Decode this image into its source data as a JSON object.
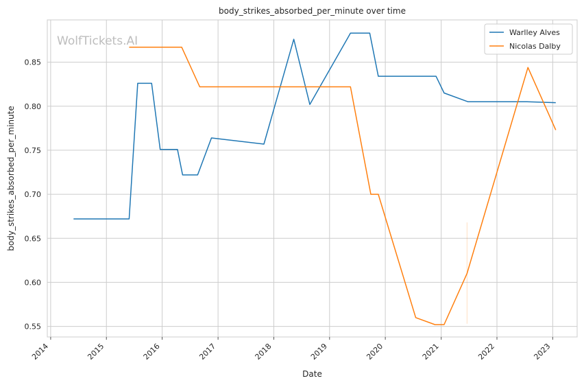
{
  "chart_data": {
    "type": "line",
    "title": "body_strikes_absorbed_per_minute over time",
    "xlabel": "Date",
    "ylabel": "body_strikes_absorbed_per_minute",
    "xlim": [
      "2013-12-10",
      "2023-06-10"
    ],
    "ylim": [
      0.538,
      0.898
    ],
    "x_ticks": [
      "2014-01-01",
      "2015-01-01",
      "2016-01-01",
      "2017-01-01",
      "2018-01-01",
      "2019-01-01",
      "2020-01-01",
      "2021-01-01",
      "2022-01-01",
      "2023-01-01"
    ],
    "x_tick_labels": [
      "2014",
      "2015",
      "2016",
      "2017",
      "2018",
      "2019",
      "2020",
      "2021",
      "2022",
      "2023"
    ],
    "y_ticks": [
      0.55,
      0.6,
      0.65,
      0.7,
      0.75,
      0.8,
      0.85
    ],
    "y_tick_labels": [
      "0.55",
      "0.60",
      "0.65",
      "0.70",
      "0.75",
      "0.80",
      "0.85"
    ],
    "grid": true,
    "legend_position": "top-right",
    "watermark": "WolfTickets.AI",
    "series": [
      {
        "name": "Warlley Alves",
        "color": "#1f77b4",
        "points": [
          [
            "2014-05-31",
            0.672
          ],
          [
            "2015-05-30",
            0.672
          ],
          [
            "2015-07-25",
            0.826
          ],
          [
            "2015-10-24",
            0.826
          ],
          [
            "2015-12-19",
            0.751
          ],
          [
            "2016-04-10",
            0.751
          ],
          [
            "2016-05-14",
            0.722
          ],
          [
            "2016-08-20",
            0.722
          ],
          [
            "2016-11-19",
            0.764
          ],
          [
            "2017-10-28",
            0.757
          ],
          [
            "2018-05-12",
            0.876
          ],
          [
            "2018-08-25",
            0.802
          ],
          [
            "2019-05-18",
            0.883
          ],
          [
            "2019-09-21",
            0.883
          ],
          [
            "2019-11-16",
            0.834
          ],
          [
            "2020-11-28",
            0.834
          ],
          [
            "2021-01-20",
            0.815
          ],
          [
            "2021-06-26",
            0.805
          ],
          [
            "2022-07-16",
            0.805
          ],
          [
            "2023-01-21",
            0.804
          ]
        ]
      },
      {
        "name": "Nicolas Dalby",
        "color": "#ff7f0e",
        "points": [
          [
            "2015-05-30",
            0.867
          ],
          [
            "2016-05-08",
            0.867
          ],
          [
            "2016-09-03",
            0.822
          ],
          [
            "2019-05-18",
            0.822
          ],
          [
            "2019-09-28",
            0.7
          ],
          [
            "2019-11-16",
            0.7
          ],
          [
            "2020-07-18",
            0.56
          ],
          [
            "2020-11-21",
            0.552
          ],
          [
            "2021-01-20",
            0.552
          ],
          [
            "2021-06-19",
            0.61
          ],
          [
            "2022-07-23",
            0.844
          ],
          [
            "2023-01-21",
            0.773
          ]
        ]
      }
    ]
  }
}
